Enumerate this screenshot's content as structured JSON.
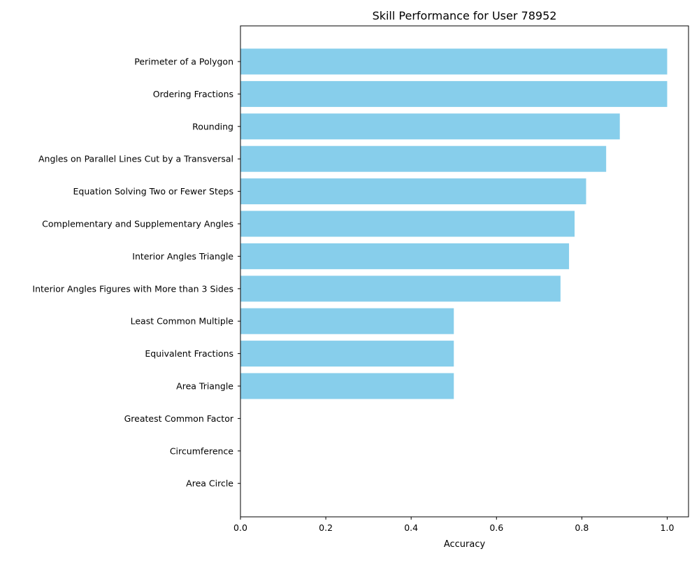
{
  "chart_data": {
    "type": "bar",
    "orientation": "horizontal",
    "title": "Skill Performance for User 78952",
    "xlabel": "Accuracy",
    "ylabel": "",
    "xlim": [
      0,
      1.05
    ],
    "xticks": [
      "0.0",
      "0.2",
      "0.4",
      "0.6",
      "0.8",
      "1.0"
    ],
    "grid": false,
    "bar_color": "#87ceeb",
    "categories": [
      "Perimeter of a Polygon",
      "Ordering Fractions",
      "Rounding",
      "Angles on Parallel Lines Cut by a Transversal",
      "Equation Solving Two or Fewer Steps",
      "Complementary and Supplementary Angles",
      "Interior Angles Triangle",
      "Interior Angles Figures with More than 3 Sides",
      "Least Common Multiple",
      "Equivalent Fractions",
      "Area Triangle",
      "Greatest Common Factor",
      "Circumference ",
      "Area Circle"
    ],
    "values": [
      1.0,
      1.0,
      0.889,
      0.857,
      0.81,
      0.783,
      0.77,
      0.75,
      0.5,
      0.5,
      0.5,
      0.0,
      0.0,
      0.0
    ]
  }
}
